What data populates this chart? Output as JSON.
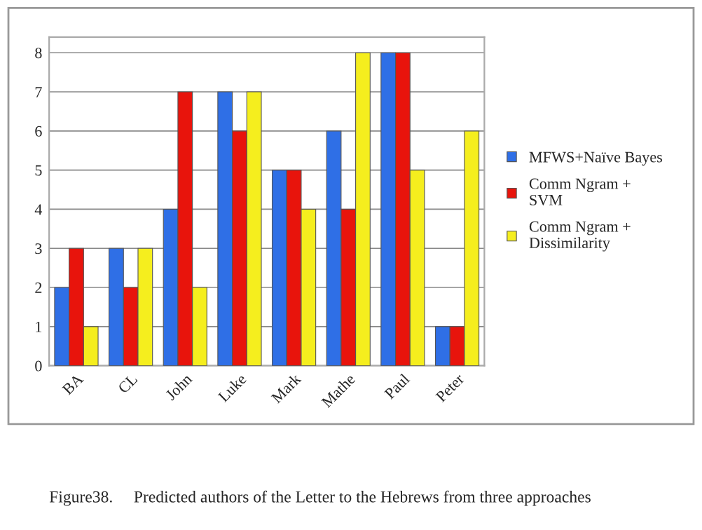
{
  "chart_data": {
    "type": "bar",
    "categories": [
      "BA",
      "CL",
      "John",
      "Luke",
      "Mark",
      "Mathe",
      "Paul",
      "Peter"
    ],
    "series": [
      {
        "name": "MFWS+Naïve Bayes",
        "color": "#2f6fe6",
        "values": [
          2,
          3,
          4,
          7,
          5,
          6,
          8,
          1
        ]
      },
      {
        "name": "Comm Ngram +\nSVM",
        "color": "#e8140c",
        "values": [
          3,
          2,
          7,
          6,
          5,
          4,
          8,
          1
        ]
      },
      {
        "name": "Comm Ngram +\nDissimilarity",
        "color": "#f5ee1e",
        "values": [
          1,
          3,
          2,
          7,
          4,
          8,
          5,
          6
        ]
      }
    ],
    "ylim": [
      0,
      8.4
    ],
    "yticks": [
      0,
      1,
      2,
      3,
      4,
      5,
      6,
      7,
      8
    ],
    "grid": "y",
    "legend": "right",
    "annotations": [
      "Figure38.     Predicted authors of the Letter to the Hebrews from three approaches"
    ]
  }
}
